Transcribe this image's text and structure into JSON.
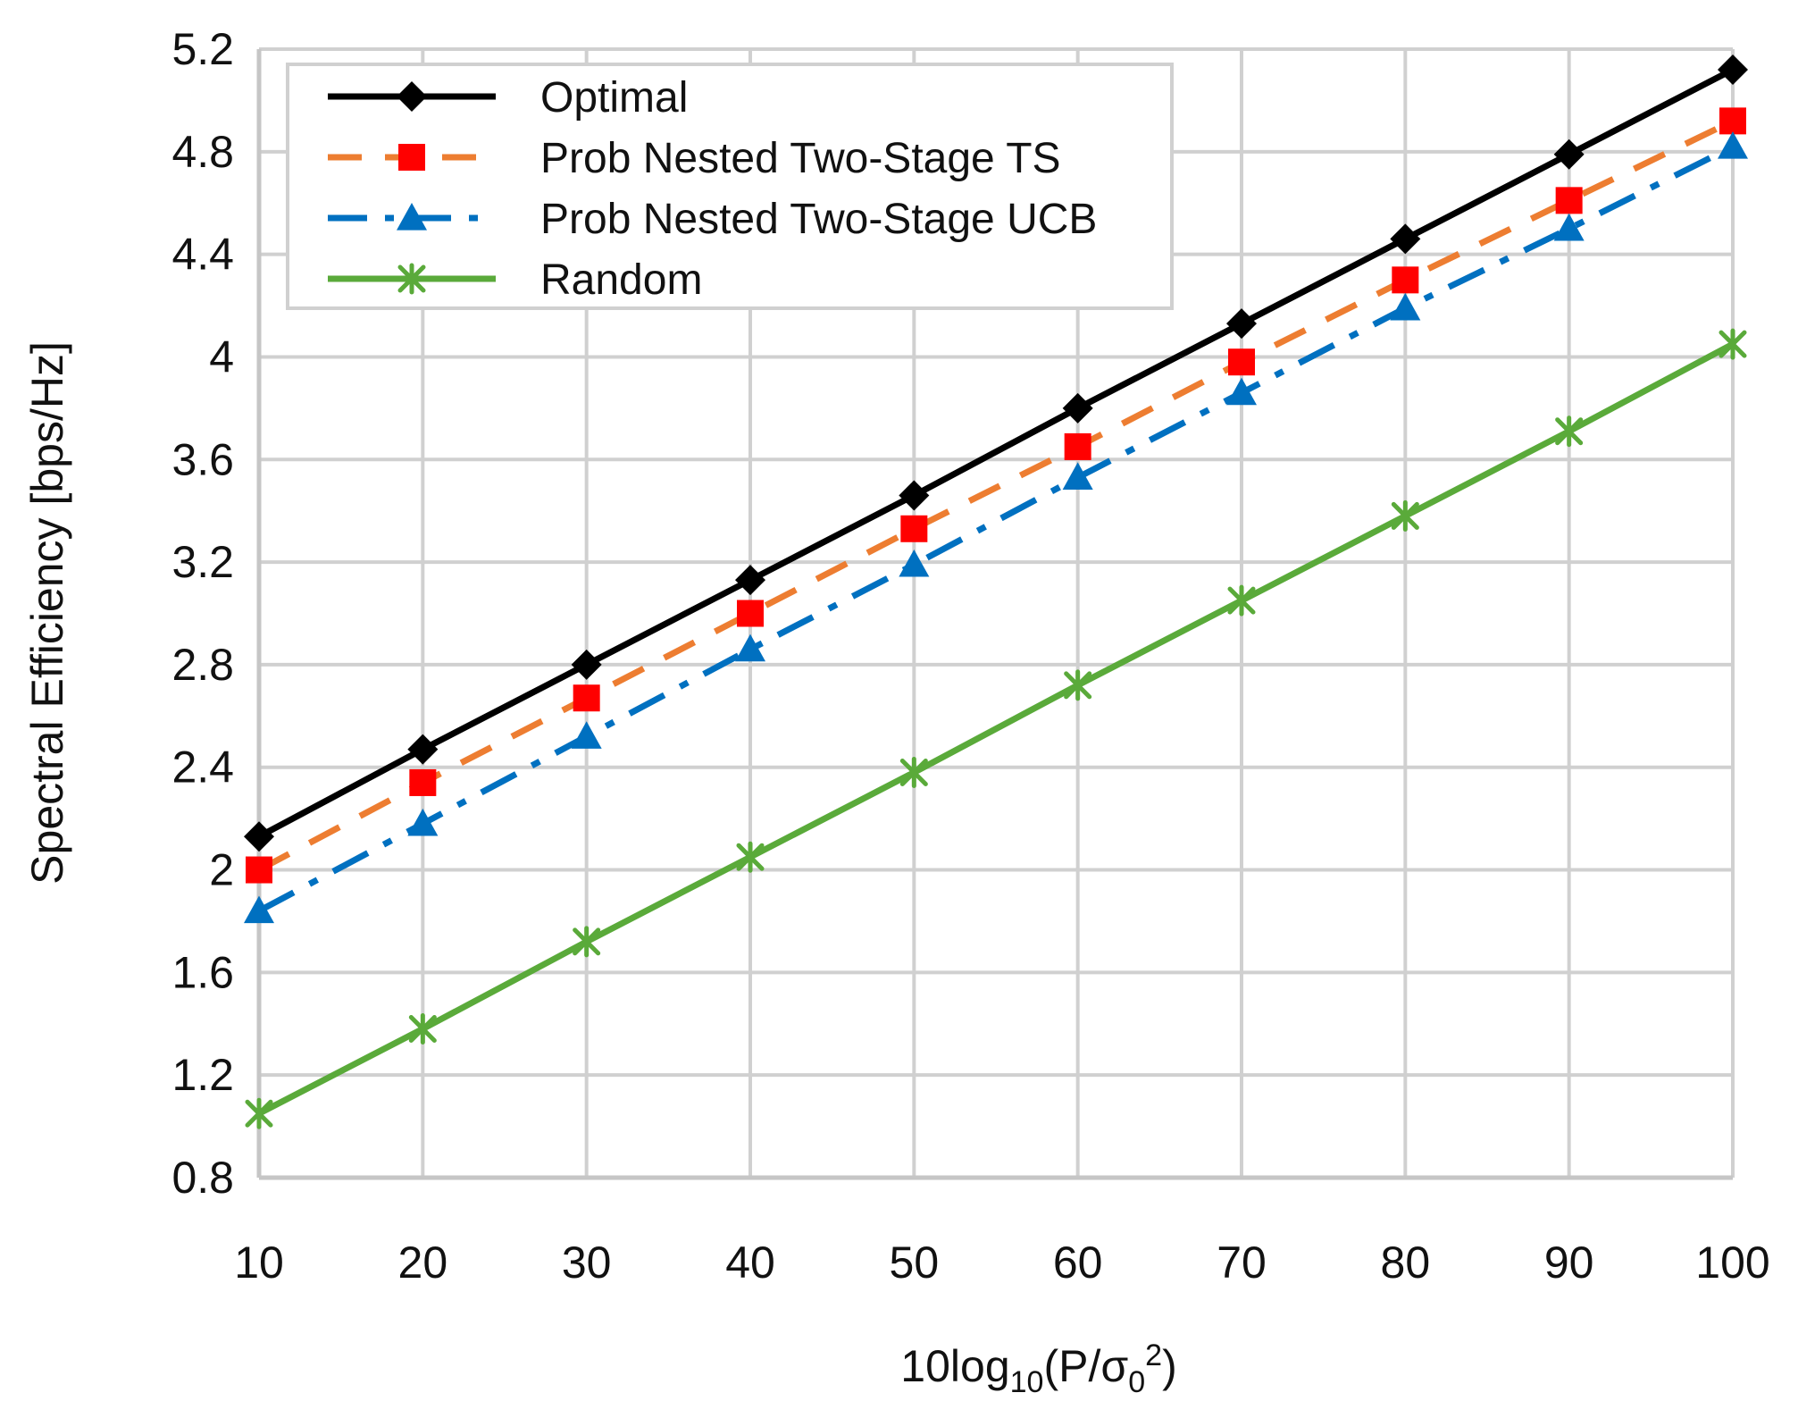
{
  "chart_data": {
    "type": "line",
    "title": "",
    "xlabel": "10log10(P/σ0^2)",
    "xlabel_parts": {
      "prefix": "10log",
      "sub1": "10",
      "mid": "(P/σ",
      "sub2": "0",
      "sup": "2",
      "suffix": ")"
    },
    "ylabel": "Spectral Efficiency [bps/Hz]",
    "x": [
      10,
      20,
      30,
      40,
      50,
      60,
      70,
      80,
      90,
      100
    ],
    "xlim": [
      10,
      100
    ],
    "ylim": [
      0.8,
      5.2
    ],
    "yticks": [
      0.8,
      1.2,
      1.6,
      2,
      2.4,
      2.8,
      3.2,
      3.6,
      4,
      4.4,
      4.8,
      5.2
    ],
    "ytick_labels": [
      "0.8",
      "1.2",
      "1.6",
      "2",
      "2.4",
      "2.8",
      "3.2",
      "3.6",
      "4",
      "4.4",
      "4.8",
      "5.2"
    ],
    "xtick_labels": [
      "10",
      "20",
      "30",
      "40",
      "50",
      "60",
      "70",
      "80",
      "90",
      "100"
    ],
    "grid": true,
    "legend_position": "top-left",
    "series": [
      {
        "name": "Optimal",
        "values": [
          2.13,
          2.47,
          2.8,
          3.13,
          3.46,
          3.8,
          4.13,
          4.46,
          4.79,
          5.12
        ],
        "color": "#000000",
        "marker": "diamond",
        "marker_color": "#000000",
        "dash": "solid"
      },
      {
        "name": "Prob Nested Two-Stage TS",
        "values": [
          2.0,
          2.34,
          2.67,
          3.0,
          3.33,
          3.65,
          3.98,
          4.3,
          4.61,
          4.92
        ],
        "color": "#ED7D31",
        "marker": "square",
        "marker_color": "#FF0000",
        "dash": "dashed"
      },
      {
        "name": "Prob Nested Two-Stage UCB",
        "values": [
          1.84,
          2.18,
          2.52,
          2.86,
          3.19,
          3.53,
          3.86,
          4.19,
          4.5,
          4.82
        ],
        "color": "#0070C0",
        "marker": "triangle",
        "marker_color": "#0070C0",
        "dash": "dashdot"
      },
      {
        "name": "Random",
        "values": [
          1.05,
          1.38,
          1.72,
          2.05,
          2.38,
          2.72,
          3.05,
          3.38,
          3.71,
          4.05
        ],
        "color": "#5AAA3A",
        "marker": "star",
        "marker_color": "#5AAA3A",
        "dash": "solid"
      }
    ]
  }
}
